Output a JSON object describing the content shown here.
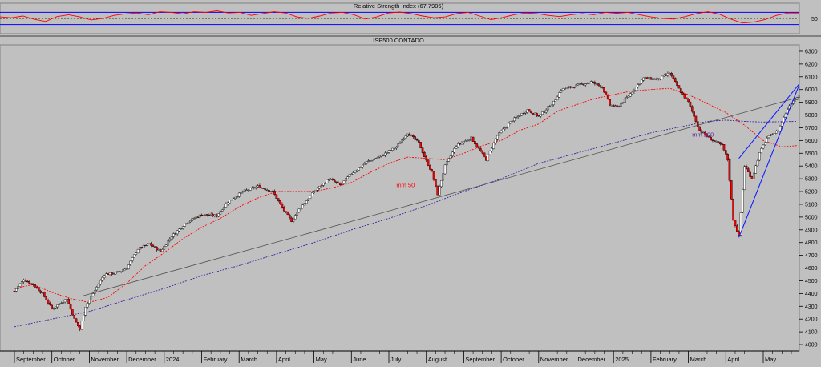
{
  "chart_data": [
    {
      "type": "line",
      "title": "Relative Strength Index (67.7906)",
      "ylim": [
        0,
        100
      ],
      "bands": [
        30,
        50,
        70
      ],
      "y_ticks": [
        {
          "v": 50,
          "label": "50"
        }
      ],
      "series": [
        {
          "values": [
            55,
            52,
            58,
            47,
            40,
            56,
            62,
            55,
            45,
            50,
            60,
            65,
            68,
            62,
            72,
            70,
            65,
            72,
            70,
            75,
            68,
            70,
            60,
            66,
            72,
            68,
            55,
            50,
            58,
            68,
            70,
            62,
            48,
            55,
            68,
            71,
            66,
            58,
            52,
            55,
            66,
            70,
            58,
            46,
            53,
            62,
            68,
            66,
            60,
            56,
            62,
            66,
            62,
            70,
            67,
            70,
            62,
            55,
            50,
            48,
            56,
            66,
            72,
            64,
            48,
            35,
            38,
            46,
            60,
            68,
            67.79
          ]
        }
      ],
      "color": "#ff0000",
      "band_color": "#0000ff"
    },
    {
      "type": "line",
      "title": "ISP500 CONTADO",
      "ylim": [
        3950,
        6350
      ],
      "y_ticks": [
        4000,
        4100,
        4200,
        4300,
        4400,
        4500,
        4600,
        4700,
        4800,
        4900,
        5000,
        5100,
        5200,
        5300,
        5400,
        5500,
        5600,
        5700,
        5800,
        5900,
        6000,
        6100,
        6200,
        6300
      ],
      "x_ticks": [
        {
          "label": "September",
          "m": 0
        },
        {
          "label": "October",
          "m": 1
        },
        {
          "label": "November",
          "m": 2
        },
        {
          "label": "December",
          "m": 3
        },
        {
          "label": "2024",
          "m": 4
        },
        {
          "label": "February",
          "m": 5
        },
        {
          "label": "March",
          "m": 6
        },
        {
          "label": "April",
          "m": 7
        },
        {
          "label": "May",
          "m": 8
        },
        {
          "label": "June",
          "m": 9
        },
        {
          "label": "July",
          "m": 10
        },
        {
          "label": "August",
          "m": 11
        },
        {
          "label": "September",
          "m": 12
        },
        {
          "label": "October",
          "m": 13
        },
        {
          "label": "November",
          "m": 14
        },
        {
          "label": "December",
          "m": 15
        },
        {
          "label": "2025",
          "m": 16
        },
        {
          "label": "February",
          "m": 17
        },
        {
          "label": "March",
          "m": 18
        },
        {
          "label": "April",
          "m": 19
        },
        {
          "label": "May",
          "m": 20
        }
      ],
      "price": [
        [
          0,
          4420
        ],
        [
          0.25,
          4510
        ],
        [
          0.5,
          4470
        ],
        [
          0.75,
          4400
        ],
        [
          1,
          4280
        ],
        [
          1.2,
          4320
        ],
        [
          1.4,
          4360
        ],
        [
          1.6,
          4200
        ],
        [
          1.75,
          4120
        ],
        [
          1.9,
          4300
        ],
        [
          2.1,
          4400
        ],
        [
          2.4,
          4550
        ],
        [
          2.7,
          4560
        ],
        [
          3,
          4600
        ],
        [
          3.3,
          4750
        ],
        [
          3.6,
          4790
        ],
        [
          3.9,
          4730
        ],
        [
          4.2,
          4850
        ],
        [
          4.6,
          4960
        ],
        [
          5,
          5020
        ],
        [
          5.4,
          5010
        ],
        [
          5.7,
          5120
        ],
        [
          6.1,
          5200
        ],
        [
          6.5,
          5240
        ],
        [
          6.9,
          5200
        ],
        [
          7.2,
          5050
        ],
        [
          7.4,
          4970
        ],
        [
          7.6,
          5060
        ],
        [
          8,
          5200
        ],
        [
          8.4,
          5300
        ],
        [
          8.7,
          5250
        ],
        [
          9,
          5340
        ],
        [
          9.4,
          5430
        ],
        [
          9.8,
          5480
        ],
        [
          10.2,
          5550
        ],
        [
          10.5,
          5660
        ],
        [
          10.8,
          5580
        ],
        [
          11,
          5440
        ],
        [
          11.15,
          5350
        ],
        [
          11.3,
          5180
        ],
        [
          11.5,
          5400
        ],
        [
          11.8,
          5560
        ],
        [
          12.2,
          5620
        ],
        [
          12.6,
          5450
        ],
        [
          12.9,
          5640
        ],
        [
          13.3,
          5760
        ],
        [
          13.7,
          5840
        ],
        [
          14,
          5790
        ],
        [
          14.4,
          5900
        ],
        [
          14.6,
          6000
        ],
        [
          15,
          6030
        ],
        [
          15.4,
          6060
        ],
        [
          15.7,
          6020
        ],
        [
          15.9,
          5880
        ],
        [
          16.1,
          5860
        ],
        [
          16.4,
          5950
        ],
        [
          16.8,
          6090
        ],
        [
          17.2,
          6080
        ],
        [
          17.5,
          6130
        ],
        [
          17.8,
          5980
        ],
        [
          18,
          5900
        ],
        [
          18.3,
          5680
        ],
        [
          18.6,
          5610
        ],
        [
          18.9,
          5560
        ],
        [
          19.05,
          5450
        ],
        [
          19.2,
          4980
        ],
        [
          19.35,
          4850
        ],
        [
          19.5,
          5400
        ],
        [
          19.7,
          5300
        ],
        [
          19.9,
          5500
        ],
        [
          20.1,
          5620
        ],
        [
          20.4,
          5680
        ],
        [
          20.7,
          5880
        ],
        [
          20.95,
          5960
        ]
      ],
      "mm50": [
        [
          0,
          4440
        ],
        [
          0.5,
          4470
        ],
        [
          1,
          4410
        ],
        [
          1.5,
          4360
        ],
        [
          2,
          4330
        ],
        [
          2.5,
          4370
        ],
        [
          3,
          4480
        ],
        [
          3.5,
          4620
        ],
        [
          4,
          4720
        ],
        [
          4.5,
          4830
        ],
        [
          5,
          4920
        ],
        [
          5.5,
          4990
        ],
        [
          6,
          5080
        ],
        [
          6.5,
          5150
        ],
        [
          7,
          5200
        ],
        [
          7.5,
          5200
        ],
        [
          8,
          5200
        ],
        [
          8.5,
          5230
        ],
        [
          9,
          5270
        ],
        [
          9.5,
          5350
        ],
        [
          10,
          5420
        ],
        [
          10.5,
          5470
        ],
        [
          11,
          5460
        ],
        [
          11.5,
          5450
        ],
        [
          12,
          5500
        ],
        [
          12.5,
          5560
        ],
        [
          13,
          5600
        ],
        [
          13.5,
          5680
        ],
        [
          14,
          5730
        ],
        [
          14.5,
          5830
        ],
        [
          15,
          5880
        ],
        [
          15.5,
          5930
        ],
        [
          16,
          5960
        ],
        [
          16.5,
          5990
        ],
        [
          17,
          6000
        ],
        [
          17.5,
          6010
        ],
        [
          18,
          5960
        ],
        [
          18.5,
          5890
        ],
        [
          19,
          5820
        ],
        [
          19.5,
          5720
        ],
        [
          20,
          5600
        ],
        [
          20.5,
          5550
        ],
        [
          20.9,
          5560
        ]
      ],
      "mm200": [
        [
          0,
          4140
        ],
        [
          1,
          4200
        ],
        [
          2,
          4260
        ],
        [
          3,
          4350
        ],
        [
          4,
          4440
        ],
        [
          5,
          4540
        ],
        [
          6,
          4620
        ],
        [
          7,
          4710
        ],
        [
          8,
          4800
        ],
        [
          9,
          4900
        ],
        [
          10,
          4990
        ],
        [
          11,
          5090
        ],
        [
          12,
          5200
        ],
        [
          13,
          5300
        ],
        [
          14,
          5420
        ],
        [
          15,
          5500
        ],
        [
          16,
          5580
        ],
        [
          17,
          5660
        ],
        [
          18,
          5720
        ],
        [
          18.5,
          5750
        ],
        [
          19,
          5760
        ],
        [
          19.5,
          5750
        ],
        [
          20,
          5745
        ],
        [
          20.9,
          5750
        ]
      ],
      "trend_line": [
        [
          1.8,
          4380
        ],
        [
          20.95,
          5940
        ]
      ],
      "channel_upper": [
        [
          19.35,
          5460
        ],
        [
          20.95,
          6040
        ]
      ],
      "channel_lower": [
        [
          19.35,
          4840
        ],
        [
          20.95,
          6030
        ]
      ],
      "annotations": [
        {
          "text": "mm 50",
          "x": 10.2,
          "y": 5235,
          "color": "#ff0000"
        },
        {
          "text": "mm 200",
          "x": 18.1,
          "y": 5630,
          "color": "#6020a0"
        }
      ]
    }
  ]
}
